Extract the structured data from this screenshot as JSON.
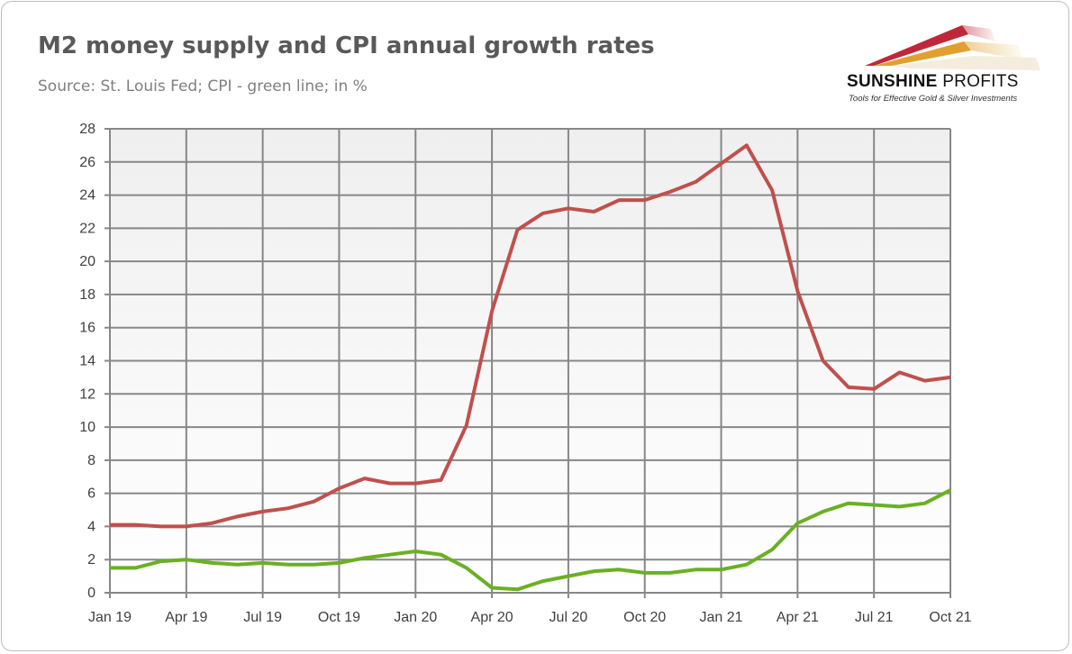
{
  "header": {
    "title": "M2 money supply and CPI annual growth rates",
    "subtitle": "Source: St. Louis Fed; CPI - green line; in %"
  },
  "logo": {
    "name_bold": "SUNSHINE",
    "name_regular": "PROFITS",
    "tagline": "Tools for Effective Gold & Silver Investments"
  },
  "chart_data": {
    "type": "line",
    "title": "M2 money supply and CPI annual growth rates",
    "xlabel": "",
    "ylabel": "",
    "ylim": [
      0,
      28
    ],
    "yticks": [
      0,
      2,
      4,
      6,
      8,
      10,
      12,
      14,
      16,
      18,
      20,
      22,
      24,
      26,
      28
    ],
    "xtick_labels": [
      "Jan 19",
      "Apr 19",
      "Jul 19",
      "Oct 19",
      "Jan 20",
      "Apr 20",
      "Jul 20",
      "Oct 20",
      "Jan 21",
      "Apr 21",
      "Jul 21",
      "Oct 21"
    ],
    "grid": true,
    "x": [
      "2019-01",
      "2019-02",
      "2019-03",
      "2019-04",
      "2019-05",
      "2019-06",
      "2019-07",
      "2019-08",
      "2019-09",
      "2019-10",
      "2019-11",
      "2019-12",
      "2020-01",
      "2020-02",
      "2020-03",
      "2020-04",
      "2020-05",
      "2020-06",
      "2020-07",
      "2020-08",
      "2020-09",
      "2020-10",
      "2020-11",
      "2020-12",
      "2021-01",
      "2021-02",
      "2021-03",
      "2021-04",
      "2021-05",
      "2021-06",
      "2021-07",
      "2021-08",
      "2021-09",
      "2021-10"
    ],
    "series": [
      {
        "color": "#c0504d",
        "values": [
          4.1,
          4.1,
          4.0,
          4.0,
          4.2,
          4.6,
          4.9,
          5.1,
          5.5,
          6.3,
          6.9,
          6.6,
          6.6,
          6.8,
          10.1,
          17.0,
          21.9,
          22.9,
          23.2,
          23.0,
          23.7,
          23.7,
          24.2,
          24.8,
          25.9,
          27.0,
          24.3,
          18.2,
          14.0,
          12.4,
          12.3,
          13.3,
          12.8,
          13.0
        ]
      },
      {
        "color": "#6ab023",
        "values": [
          1.5,
          1.5,
          1.9,
          2.0,
          1.8,
          1.7,
          1.8,
          1.7,
          1.7,
          1.8,
          2.1,
          2.3,
          2.5,
          2.3,
          1.5,
          0.3,
          0.2,
          0.7,
          1.0,
          1.3,
          1.4,
          1.2,
          1.2,
          1.4,
          1.4,
          1.7,
          2.6,
          4.2,
          4.9,
          5.4,
          5.3,
          5.2,
          5.4,
          6.2
        ]
      }
    ]
  }
}
